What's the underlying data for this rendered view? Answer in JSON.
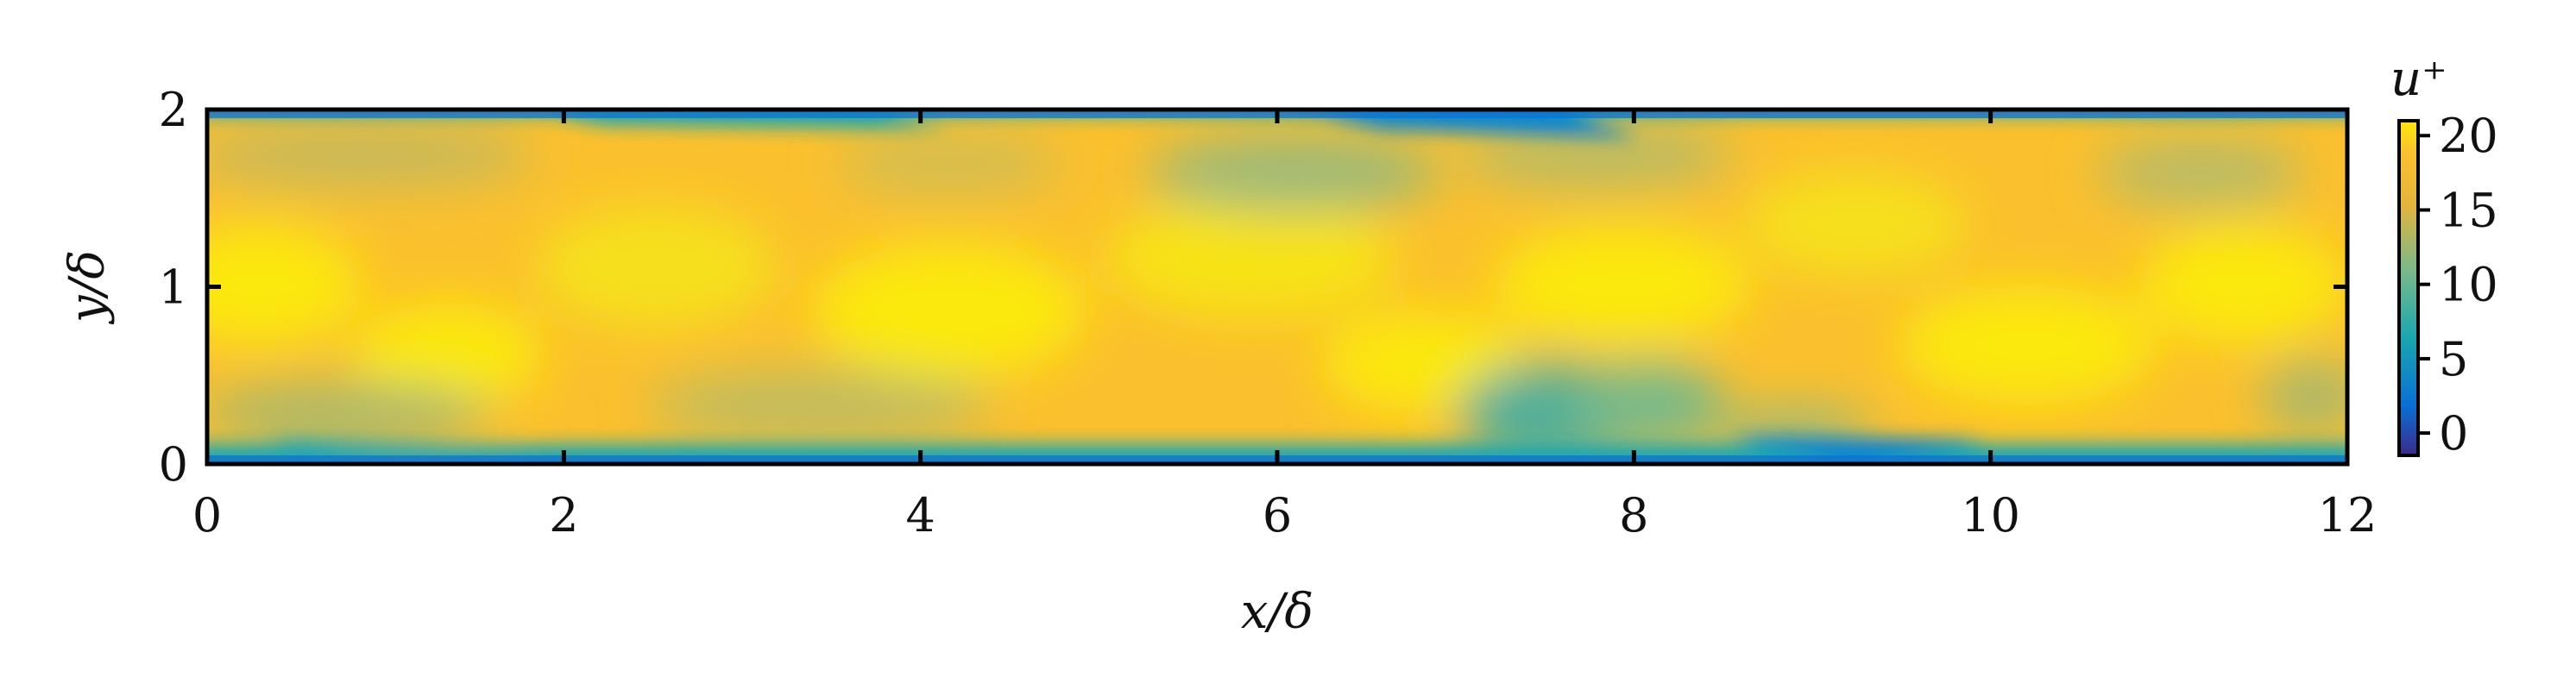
{
  "chart_data": {
    "type": "heatmap",
    "title": "",
    "xlabel": "x/δ",
    "ylabel": "y/δ",
    "xlim": [
      0,
      12
    ],
    "ylim": [
      0,
      2
    ],
    "x_ticks": [
      0,
      2,
      4,
      6,
      8,
      10,
      12
    ],
    "x_tick_labels": [
      "0",
      "2",
      "4",
      "6",
      "8",
      "10",
      "12"
    ],
    "y_ticks": [
      0,
      1,
      2
    ],
    "y_tick_labels": [
      "0",
      "1",
      "2"
    ],
    "colorbar": {
      "title": "u⁺",
      "range": [
        -1.5,
        21
      ],
      "ticks": [
        0,
        5,
        10,
        15,
        20
      ],
      "tick_labels": [
        "0",
        "5",
        "10",
        "15",
        "20"
      ],
      "colormap": [
        "#3b2a8c",
        "#0a6fd6",
        "#1aa6b0",
        "#78b98a",
        "#e3b43c",
        "#fbc02d",
        "#fbe80c"
      ]
    },
    "field_description_values": {
      "wall_u_plus": 0,
      "core_u_plus": 19
    }
  }
}
